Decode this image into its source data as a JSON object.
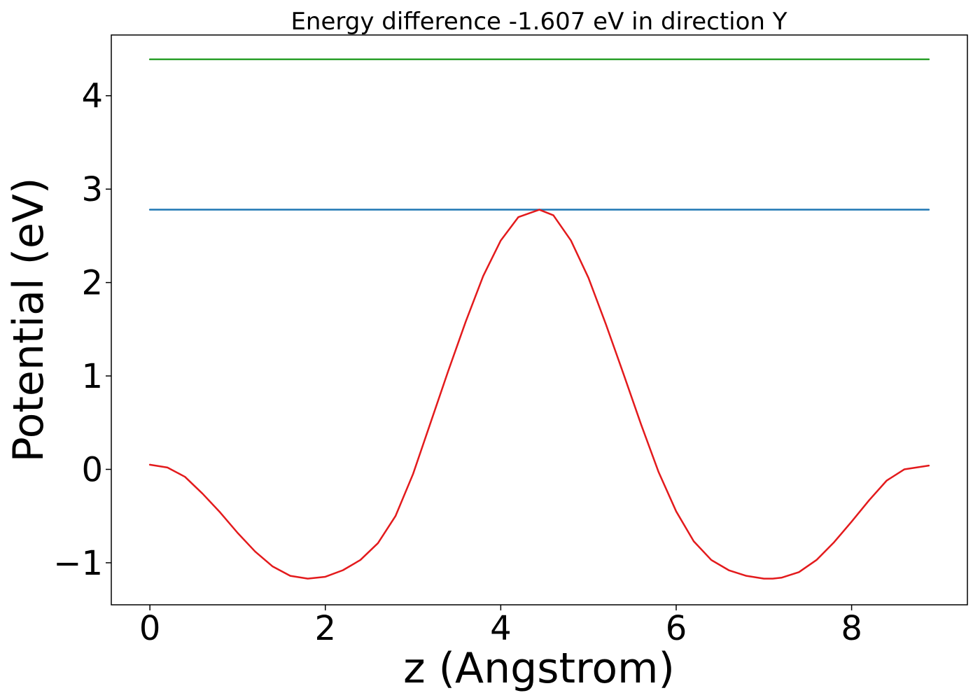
{
  "chart_data": {
    "type": "line",
    "title": "Energy difference -1.607 eV in direction Y",
    "xlabel": "z (Angstrom)",
    "ylabel": "Potential (eV)",
    "xlim": [
      -0.44,
      9.32
    ],
    "ylim": [
      -1.45,
      4.65
    ],
    "xticks": [
      0,
      2,
      4,
      6,
      8
    ],
    "xtick_labels": [
      "0",
      "2",
      "4",
      "6",
      "8"
    ],
    "yticks": [
      -1,
      0,
      1,
      2,
      3,
      4
    ],
    "ytick_labels": [
      "−1",
      "0",
      "1",
      "2",
      "3",
      "4"
    ],
    "grid": false,
    "legend": "none",
    "series": [
      {
        "color": "#2ca02c",
        "x": [
          0,
          8.88
        ],
        "y": [
          4.39,
          4.39
        ]
      },
      {
        "color": "#1f77b4",
        "x": [
          0,
          8.88
        ],
        "y": [
          2.78,
          2.78
        ]
      },
      {
        "color": "#e31a1c",
        "x": [
          0,
          0.2,
          0.4,
          0.6,
          0.8,
          1.0,
          1.2,
          1.4,
          1.6,
          1.8,
          2.0,
          2.2,
          2.4,
          2.6,
          2.8,
          3.0,
          3.2,
          3.4,
          3.6,
          3.8,
          4.0,
          4.2,
          4.44,
          4.6,
          4.8,
          5.0,
          5.2,
          5.4,
          5.6,
          5.8,
          6.0,
          6.2,
          6.4,
          6.6,
          6.8,
          7.0,
          7.1,
          7.2,
          7.4,
          7.6,
          7.8,
          8.0,
          8.2,
          8.4,
          8.6,
          8.88
        ],
        "y": [
          0.05,
          0.02,
          -0.08,
          -0.26,
          -0.46,
          -0.68,
          -0.88,
          -1.04,
          -1.14,
          -1.17,
          -1.15,
          -1.08,
          -0.97,
          -0.79,
          -0.5,
          -0.05,
          0.5,
          1.05,
          1.58,
          2.07,
          2.45,
          2.7,
          2.78,
          2.72,
          2.45,
          2.05,
          1.55,
          1.02,
          0.48,
          -0.03,
          -0.45,
          -0.77,
          -0.97,
          -1.08,
          -1.14,
          -1.17,
          -1.17,
          -1.16,
          -1.1,
          -0.97,
          -0.78,
          -0.56,
          -0.33,
          -0.12,
          0.0,
          0.04
        ]
      }
    ]
  }
}
